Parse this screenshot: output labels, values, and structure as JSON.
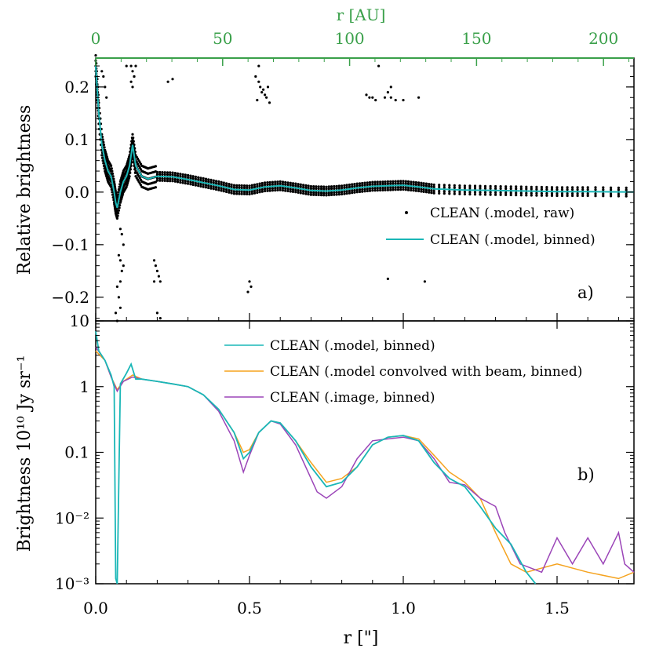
{
  "colors": {
    "teal": "#1ab7b7",
    "orange": "#f5a31f",
    "purple": "#9b45b8",
    "green_axis": "#3aa04a",
    "black": "#000000"
  },
  "chart_data": [
    {
      "type": "scatter",
      "panel": "a)",
      "xlabel_top": "r [AU]",
      "ylabel": "Relative brightness",
      "xlim": [
        0,
        1.75
      ],
      "ylim": [
        -0.245,
        0.255
      ],
      "top_xlim_au": [
        0,
        212
      ],
      "top_xticks": [
        0,
        50,
        100,
        150,
        200
      ],
      "yticks": [
        0.2,
        0.1,
        0.0,
        -0.1,
        -0.2
      ],
      "ytick_labels": [
        "0.2",
        "0.1",
        "0.0",
        "−0.1",
        "−0.2"
      ],
      "legend": {
        "placement": "center-right",
        "entries": [
          "CLEAN (.model, raw)",
          "CLEAN (.model, binned)"
        ]
      },
      "series": [
        {
          "name": "CLEAN (.model, binned)",
          "style": "line",
          "x": [
            0.0,
            0.01,
            0.02,
            0.03,
            0.04,
            0.05,
            0.06,
            0.065,
            0.07,
            0.08,
            0.09,
            0.1,
            0.11,
            0.12,
            0.13,
            0.15,
            0.17,
            0.2,
            0.25,
            0.3,
            0.35,
            0.4,
            0.45,
            0.5,
            0.55,
            0.6,
            0.65,
            0.7,
            0.75,
            0.8,
            0.85,
            0.9,
            0.95,
            1.0,
            1.05,
            1.1,
            1.2,
            1.3,
            1.4,
            1.5,
            1.6,
            1.75
          ],
          "y": [
            0.24,
            0.15,
            0.09,
            0.06,
            0.04,
            0.03,
            0.0,
            -0.02,
            -0.03,
            0.0,
            0.02,
            0.03,
            0.05,
            0.09,
            0.05,
            0.03,
            0.025,
            0.03,
            0.029,
            0.024,
            0.018,
            0.012,
            0.005,
            0.004,
            0.01,
            0.012,
            0.008,
            0.003,
            0.002,
            0.004,
            0.008,
            0.011,
            0.012,
            0.013,
            0.01,
            0.006,
            0.004,
            0.003,
            0.002,
            0.001,
            0.001,
            0.0
          ]
        },
        {
          "name": "CLEAN (.model, raw)",
          "style": "points",
          "x": [
            0.02,
            0.025,
            0.03,
            0.035,
            0.08,
            0.085,
            0.09,
            0.075,
            0.08,
            0.085,
            0.09,
            0.08,
            0.07,
            0.075,
            0.08,
            0.065,
            0.07,
            0.115,
            0.12,
            0.125,
            0.13,
            0.115,
            0.12,
            0.125,
            0.19,
            0.195,
            0.2,
            0.205,
            0.21,
            0.19,
            0.2,
            0.21,
            0.235,
            0.25,
            0.52,
            0.53,
            0.535,
            0.54,
            0.545,
            0.55,
            0.555,
            0.56,
            0.565,
            0.525,
            0.53,
            0.5,
            0.505,
            0.495,
            0.88,
            0.89,
            0.9,
            0.91,
            0.94,
            0.95,
            0.96,
            0.92,
            0.96,
            0.975,
            1.0,
            1.05,
            0.95,
            1.07,
            0.1
          ],
          "y": [
            0.23,
            0.22,
            0.2,
            0.18,
            -0.07,
            -0.08,
            -0.1,
            -0.12,
            -0.13,
            -0.15,
            -0.14,
            -0.17,
            -0.18,
            -0.2,
            -0.22,
            -0.23,
            -0.245,
            0.24,
            0.23,
            0.22,
            0.24,
            0.21,
            0.2,
            0.22,
            -0.13,
            -0.14,
            -0.15,
            -0.16,
            -0.17,
            -0.17,
            -0.23,
            -0.24,
            0.21,
            0.215,
            0.22,
            0.21,
            0.2,
            0.19,
            0.195,
            0.185,
            0.18,
            0.2,
            0.17,
            0.175,
            0.24,
            -0.17,
            -0.18,
            -0.19,
            0.185,
            0.18,
            0.18,
            0.175,
            0.18,
            0.19,
            0.2,
            0.24,
            0.18,
            0.175,
            0.175,
            0.18,
            -0.165,
            -0.17,
            0.24
          ]
        }
      ]
    },
    {
      "type": "line",
      "panel": "b)",
      "xlabel": "r [\"]",
      "ylabel": "Brightness 10¹⁰ Jy sr⁻¹",
      "xlim": [
        0,
        1.75
      ],
      "ylim_log": [
        0.001,
        10
      ],
      "log_scale_y": true,
      "xticks": [
        0.0,
        0.5,
        1.0,
        1.5
      ],
      "xtick_labels": [
        "0.0",
        "0.5",
        "1.0",
        "1.5"
      ],
      "yticks": [
        10,
        1,
        0.1,
        0.01,
        0.001
      ],
      "ytick_labels": [
        "10",
        "1",
        "0.1",
        "10⁻²",
        "10⁻³"
      ],
      "legend": {
        "placement": "top-center",
        "entries": [
          "CLEAN (.model, binned)",
          "CLEAN (.model convolved with beam, binned)",
          "CLEAN (.image, binned)"
        ]
      },
      "series": [
        {
          "name": "CLEAN (.model, binned)",
          "x": [
            0.0,
            0.01,
            0.03,
            0.05,
            0.06,
            0.065,
            0.07,
            0.08,
            0.1,
            0.115,
            0.13,
            0.15,
            0.2,
            0.25,
            0.3,
            0.35,
            0.4,
            0.45,
            0.48,
            0.5,
            0.53,
            0.57,
            0.6,
            0.65,
            0.7,
            0.75,
            0.8,
            0.85,
            0.9,
            0.95,
            1.0,
            1.05,
            1.1,
            1.15,
            1.2,
            1.25,
            1.3,
            1.35,
            1.4,
            1.43
          ],
          "y": [
            7.0,
            3.5,
            2.5,
            1.5,
            1.0,
            0.0012,
            0.001,
            1.1,
            1.6,
            2.2,
            1.3,
            1.3,
            1.2,
            1.1,
            1.0,
            0.75,
            0.45,
            0.2,
            0.08,
            0.1,
            0.2,
            0.3,
            0.28,
            0.15,
            0.06,
            0.03,
            0.035,
            0.06,
            0.13,
            0.17,
            0.18,
            0.15,
            0.07,
            0.04,
            0.03,
            0.015,
            0.007,
            0.004,
            0.0015,
            0.001
          ]
        },
        {
          "name": "CLEAN (.model convolved with beam, binned)",
          "x": [
            0.0,
            0.03,
            0.05,
            0.07,
            0.09,
            0.12,
            0.15,
            0.2,
            0.25,
            0.3,
            0.35,
            0.4,
            0.45,
            0.48,
            0.5,
            0.53,
            0.57,
            0.6,
            0.65,
            0.7,
            0.75,
            0.8,
            0.85,
            0.9,
            0.95,
            1.0,
            1.05,
            1.1,
            1.15,
            1.2,
            1.25,
            1.3,
            1.35,
            1.4,
            1.5,
            1.6,
            1.7,
            1.75
          ],
          "y": [
            3.5,
            2.5,
            1.4,
            0.9,
            1.2,
            1.5,
            1.3,
            1.2,
            1.1,
            1.0,
            0.75,
            0.45,
            0.2,
            0.1,
            0.11,
            0.2,
            0.3,
            0.28,
            0.15,
            0.07,
            0.035,
            0.04,
            0.06,
            0.13,
            0.17,
            0.18,
            0.16,
            0.09,
            0.05,
            0.035,
            0.02,
            0.006,
            0.002,
            0.0015,
            0.002,
            0.0015,
            0.0012,
            0.0015
          ]
        },
        {
          "name": "CLEAN (.image, binned)",
          "x": [
            0.0,
            0.03,
            0.05,
            0.07,
            0.09,
            0.12,
            0.15,
            0.2,
            0.25,
            0.3,
            0.35,
            0.4,
            0.45,
            0.48,
            0.5,
            0.53,
            0.57,
            0.6,
            0.65,
            0.7,
            0.72,
            0.75,
            0.8,
            0.85,
            0.9,
            0.95,
            1.0,
            1.05,
            1.1,
            1.15,
            1.2,
            1.25,
            1.3,
            1.33,
            1.38,
            1.45,
            1.5,
            1.55,
            1.6,
            1.65,
            1.7,
            1.72,
            1.75
          ],
          "y": [
            4.0,
            2.5,
            1.4,
            0.85,
            1.2,
            1.4,
            1.3,
            1.2,
            1.1,
            1.0,
            0.75,
            0.42,
            0.15,
            0.05,
            0.09,
            0.2,
            0.3,
            0.27,
            0.13,
            0.04,
            0.025,
            0.02,
            0.03,
            0.08,
            0.15,
            0.16,
            0.17,
            0.15,
            0.08,
            0.035,
            0.032,
            0.02,
            0.015,
            0.006,
            0.002,
            0.0015,
            0.005,
            0.002,
            0.005,
            0.002,
            0.006,
            0.002,
            0.0015
          ]
        }
      ]
    }
  ]
}
